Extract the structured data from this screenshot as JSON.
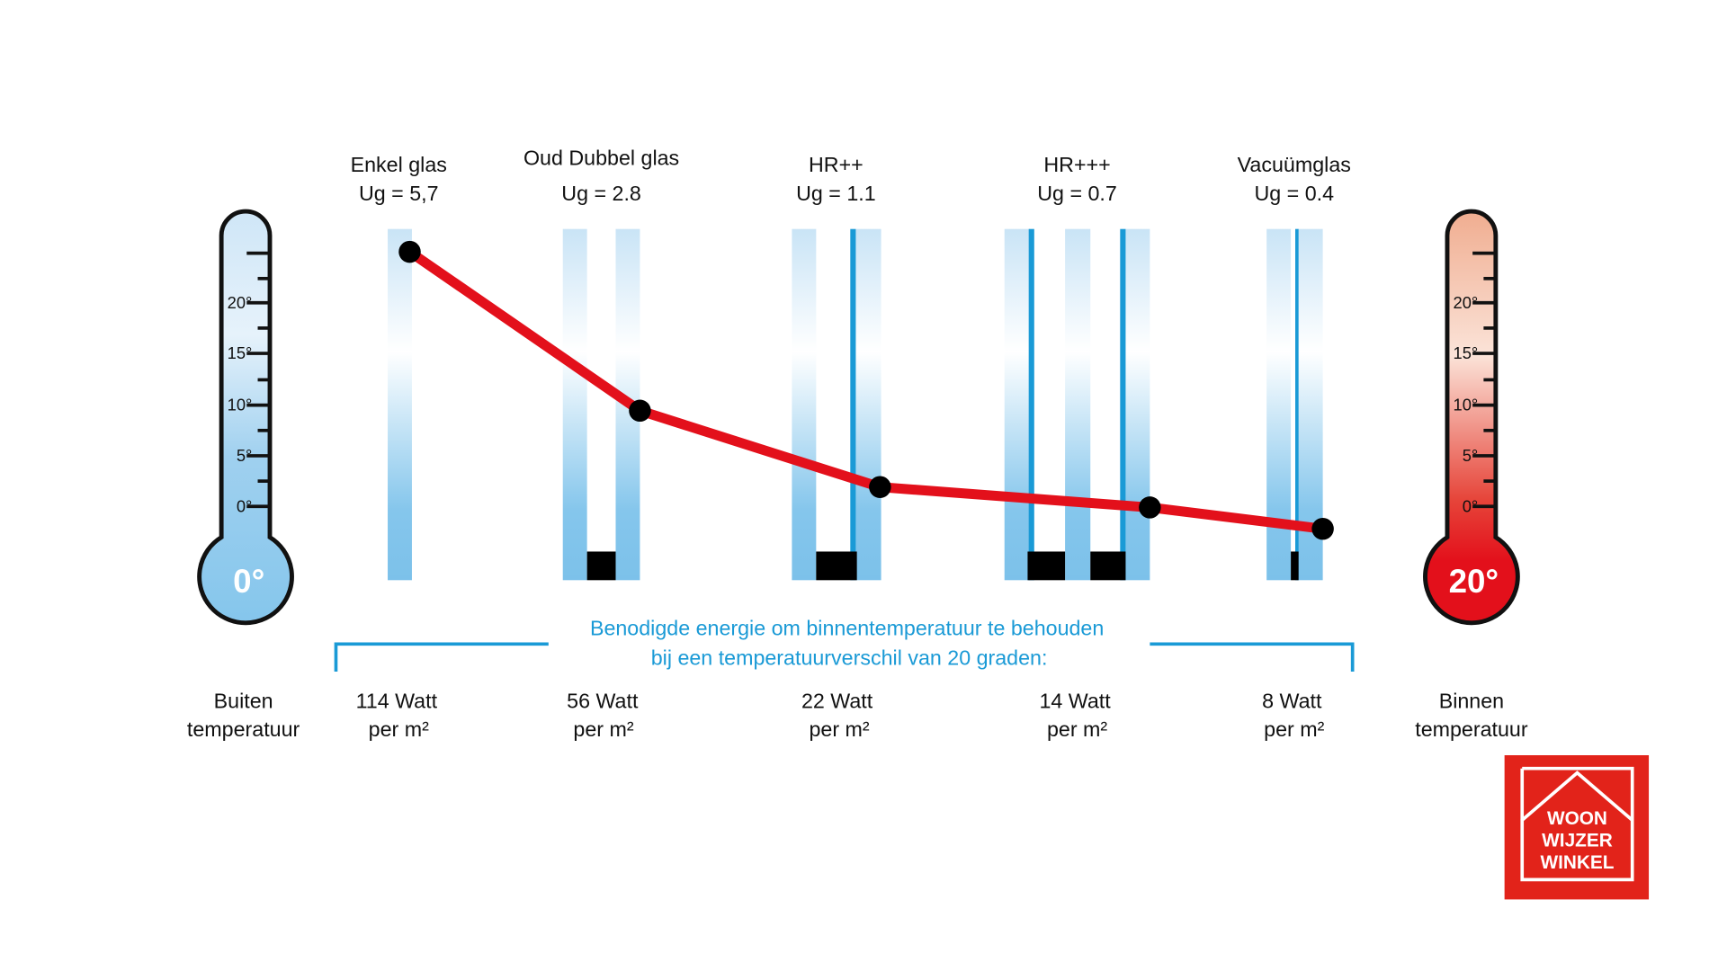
{
  "colors": {
    "glass": "#85c6ec",
    "line": "#e3101b",
    "accent": "#1a9ad6",
    "logo": "#e2231a",
    "cold": "#85c6ec",
    "warm": "#e3101b"
  },
  "thermometer_left": {
    "value_label": "0°",
    "caption_1": "Buiten",
    "caption_2": "temperatuur",
    "ticks": [
      "20°",
      "15°",
      "10°",
      "5°",
      "0°"
    ]
  },
  "thermometer_right": {
    "value_label": "20°",
    "caption_1": "Binnen",
    "caption_2": "temperatuur",
    "ticks": [
      "20°",
      "15°",
      "10°",
      "5°",
      "0°"
    ]
  },
  "note": {
    "line_1": "Benodigde energie om binnentemperatuur te behouden",
    "line_2": "bij een temperatuurverschil van 20 graden:"
  },
  "logo": {
    "text": [
      "WOON",
      "WIJZER",
      "WINKEL"
    ]
  },
  "chart_data": {
    "type": "line",
    "title": "",
    "categories": [
      "Enkel glas",
      "Oud Dubbel glas",
      "HR++",
      "HR+++",
      "Vacuümglas"
    ],
    "ug_labels": [
      "Ug = 5,7",
      "Ug = 2.8",
      "Ug = 1.1",
      "Ug = 0.7",
      "Ug = 0.4"
    ],
    "ug_values": [
      5.7,
      2.8,
      1.1,
      0.7,
      0.4
    ],
    "watt_labels": [
      "114 Watt",
      "56 Watt",
      "22 Watt",
      "14 Watt",
      "8 Watt"
    ],
    "per_label": "per m²",
    "watts": [
      114,
      56,
      22,
      14,
      8
    ],
    "line_level_degrees": [
      25,
      9.4,
      1.9,
      -0.1,
      -2.2
    ],
    "ylim": [
      -5,
      30
    ]
  }
}
